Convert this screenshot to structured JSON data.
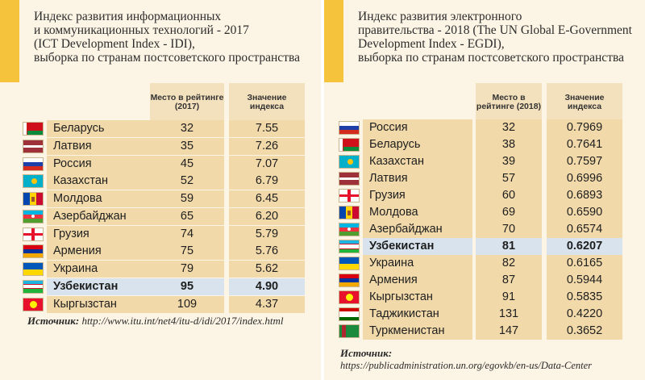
{
  "left": {
    "title_lines": [
      "Индекс развития информационных",
      "и коммуникационных технологий - 2017",
      "(ICT Development Index - IDI),",
      "выборка по странам постсоветского пространства"
    ],
    "col_rank": "Место в рейтинге (2017)",
    "col_value": "Значение индекса",
    "rows": [
      {
        "country": "Беларусь",
        "rank": "32",
        "value": "7.55"
      },
      {
        "country": "Латвия",
        "rank": "35",
        "value": "7.26"
      },
      {
        "country": "Россия",
        "rank": "45",
        "value": "7.07"
      },
      {
        "country": "Казахстан",
        "rank": "52",
        "value": "6.79"
      },
      {
        "country": "Молдова",
        "rank": "59",
        "value": "6.45"
      },
      {
        "country": "Азербайджан",
        "rank": "65",
        "value": "6.20"
      },
      {
        "country": "Грузия",
        "rank": "74",
        "value": "5.79"
      },
      {
        "country": "Армения",
        "rank": "75",
        "value": "5.76"
      },
      {
        "country": "Украина",
        "rank": "79",
        "value": "5.62"
      },
      {
        "country": "Узбекистан",
        "rank": "95",
        "value": "4.90"
      },
      {
        "country": "Кыргызстан",
        "rank": "109",
        "value": "4.37"
      }
    ],
    "source_label": "Источник:",
    "source_url": "http://www.itu.int/net4/itu-d/idi/2017/index.html"
  },
  "right": {
    "title_lines": [
      "Индекс развития электронного",
      "правительства - 2018 (The UN Global E-Government",
      "Development Index - EGDI),",
      "выборка по странам постсоветского пространства"
    ],
    "col_rank": "Место в рейтинге (2018)",
    "col_value": "Значение индекса",
    "rows": [
      {
        "country": "Россия",
        "rank": "32",
        "value": "0.7969"
      },
      {
        "country": "Беларусь",
        "rank": "38",
        "value": "0.7641"
      },
      {
        "country": "Казахстан",
        "rank": "39",
        "value": "0.7597"
      },
      {
        "country": "Латвия",
        "rank": "57",
        "value": "0.6996"
      },
      {
        "country": "Грузия",
        "rank": "60",
        "value": "0.6893"
      },
      {
        "country": "Молдова",
        "rank": "69",
        "value": "0.6590"
      },
      {
        "country": "Азербайджан",
        "rank": "70",
        "value": "0.6574"
      },
      {
        "country": "Узбекистан",
        "rank": "81",
        "value": "0.6207"
      },
      {
        "country": "Украина",
        "rank": "82",
        "value": "0.6165"
      },
      {
        "country": "Армения",
        "rank": "87",
        "value": "0.5944"
      },
      {
        "country": "Кыргызстан",
        "rank": "91",
        "value": "0.5835"
      },
      {
        "country": "Таджикистан",
        "rank": "131",
        "value": "0.4220"
      },
      {
        "country": "Туркменистан",
        "rank": "147",
        "value": "0.3652"
      }
    ],
    "source_label": "Источник:",
    "source_url": "https://publicadministration.un.org/egovkb/en-us/Data-Center"
  }
}
